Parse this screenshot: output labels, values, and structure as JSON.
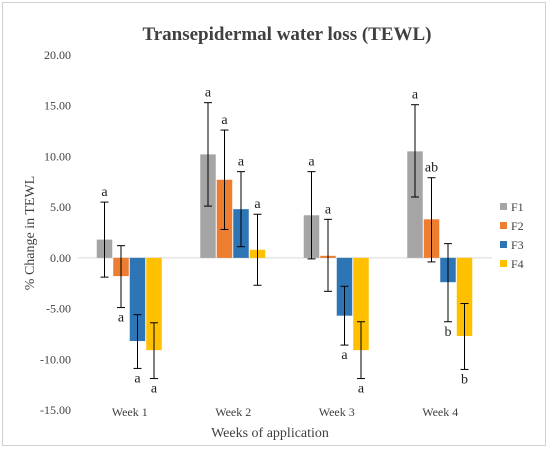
{
  "chart_data": {
    "type": "bar",
    "title": "Transepidermal water loss (TEWL)",
    "xlabel": "Weeks of application",
    "ylabel": "% Change in TEWL",
    "ylim": [
      -15,
      20
    ],
    "yticks": [
      "20.00",
      "15.00",
      "10.00",
      "5.00",
      "0.00",
      "-5.00",
      "-10.00",
      "-15.00"
    ],
    "ytick_values": [
      20,
      15,
      10,
      5,
      0,
      -5,
      -10,
      -15
    ],
    "categories": [
      "Week 1",
      "Week 2",
      "Week 3",
      "Week 4"
    ],
    "legend_position": "right",
    "series": [
      {
        "name": "F1",
        "color": "#a5a5a5",
        "values": [
          1.8,
          10.2,
          4.2,
          10.5
        ],
        "err_low": [
          -1.9,
          5.1,
          -0.1,
          6.0
        ],
        "err_high": [
          5.5,
          15.3,
          8.5,
          15.1
        ],
        "labels": [
          "a",
          "a",
          "a",
          "a"
        ]
      },
      {
        "name": "F2",
        "color": "#ed7d31",
        "values": [
          -1.8,
          7.7,
          0.2,
          3.8
        ],
        "err_low": [
          -4.9,
          2.8,
          -3.3,
          -0.4
        ],
        "err_high": [
          1.2,
          12.6,
          3.8,
          7.9
        ],
        "labels": [
          "a",
          "a",
          "a",
          "ab"
        ]
      },
      {
        "name": "F3",
        "color": "#2e75b6",
        "values": [
          -8.2,
          4.8,
          -5.7,
          -2.4
        ],
        "err_low": [
          -10.9,
          1.1,
          -8.6,
          -6.3
        ],
        "err_high": [
          -5.6,
          8.5,
          -2.8,
          1.4
        ],
        "labels": [
          "a",
          "a",
          "a",
          "b"
        ]
      },
      {
        "name": "F4",
        "color": "#ffc000",
        "values": [
          -9.1,
          0.8,
          -9.1,
          -7.7
        ],
        "err_low": [
          -11.9,
          -2.7,
          -11.9,
          -11.0
        ],
        "err_high": [
          -6.4,
          4.3,
          -6.3,
          -4.5
        ],
        "labels": [
          "a",
          "a",
          "a",
          "b"
        ]
      }
    ]
  }
}
